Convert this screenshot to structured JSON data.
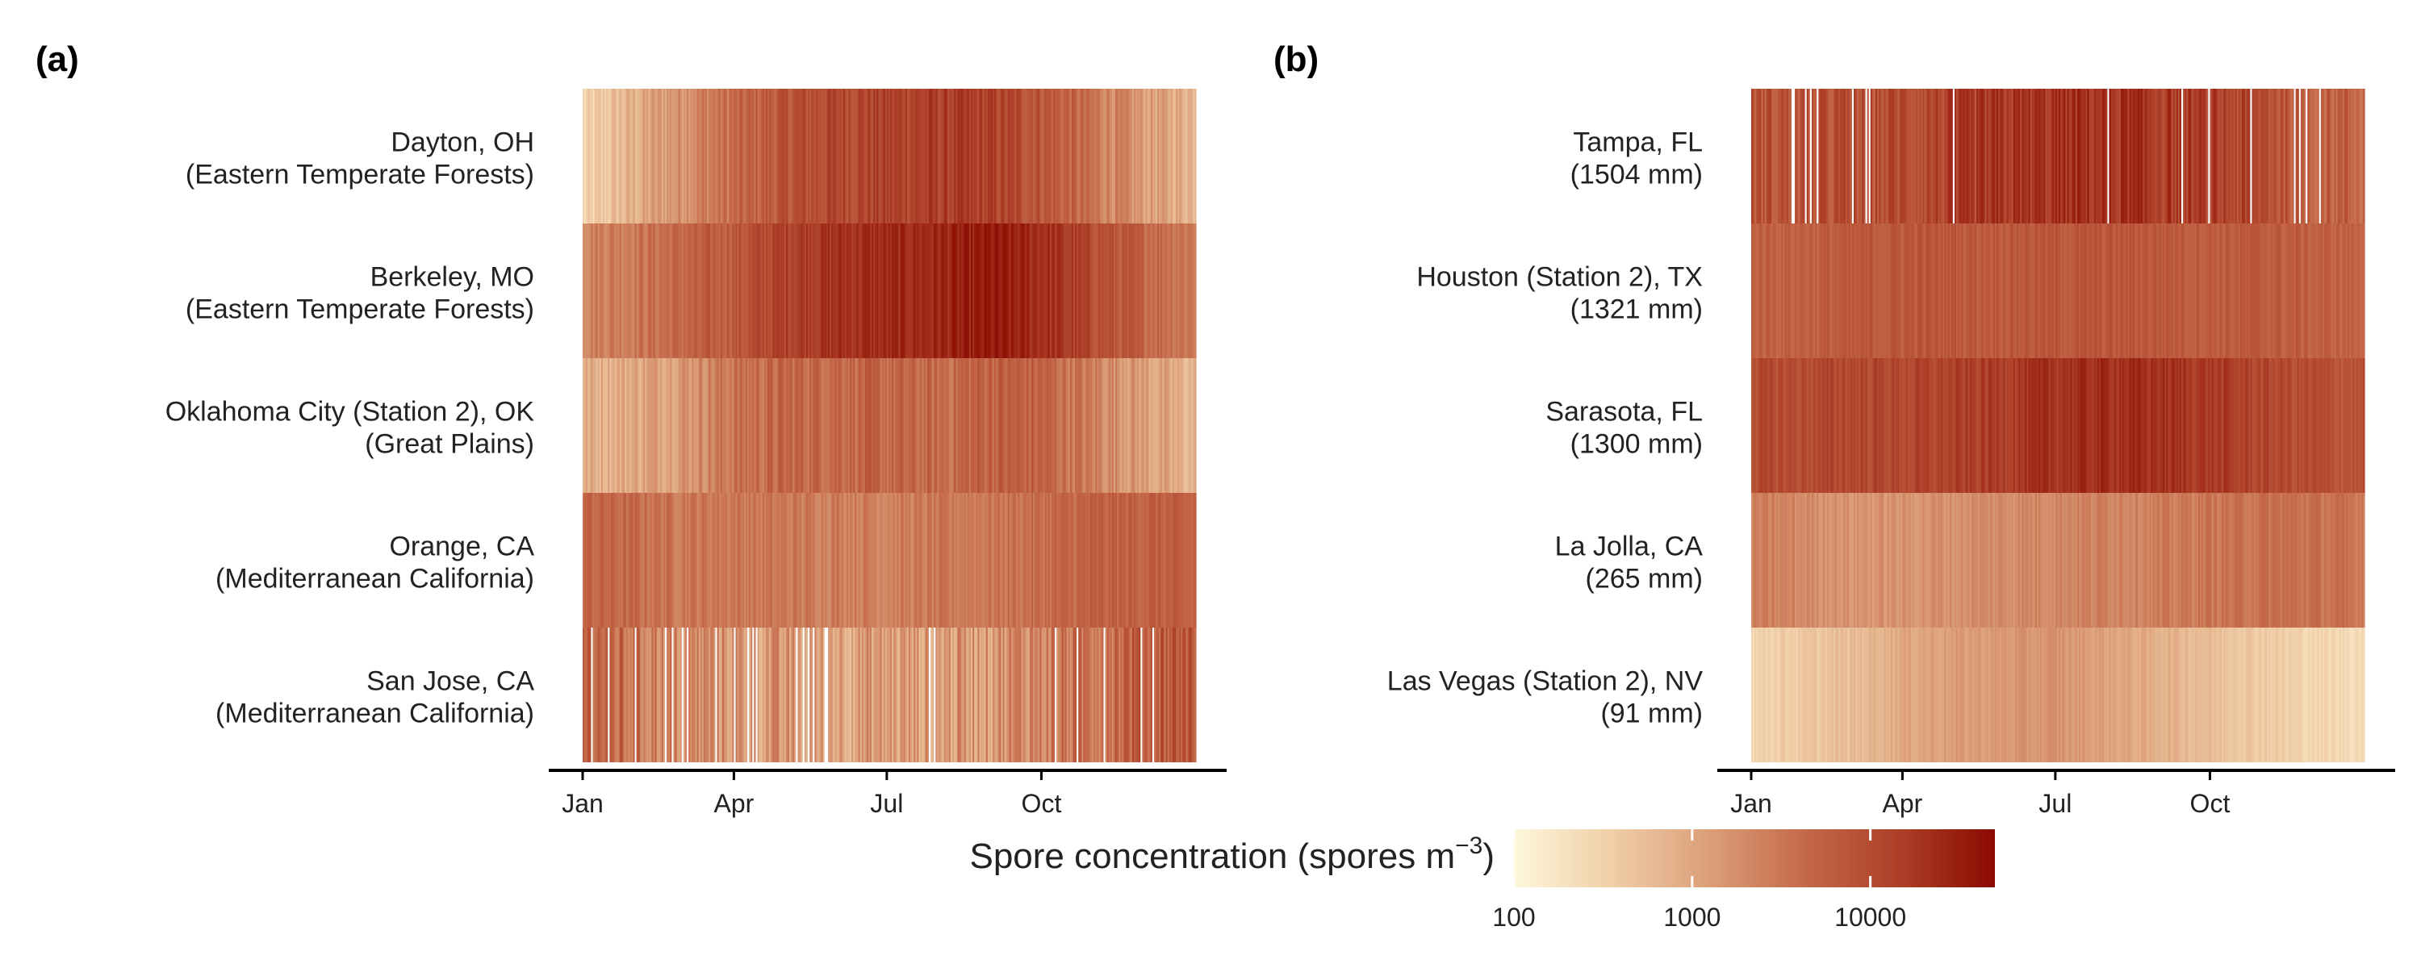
{
  "chart_data": [
    {
      "type": "heatmap",
      "panel_label": "(a)",
      "x_axis": {
        "type": "date",
        "range": [
          "Jan",
          "Dec"
        ],
        "ticks": [
          "Jan",
          "Apr",
          "Jul",
          "Oct"
        ]
      },
      "rows": [
        {
          "label_line1": "Dayton, OH",
          "label_line2": "(Eastern Temperate Forests)",
          "log10_profile": [
            2.4,
            2.9,
            3.3,
            3.6,
            3.9,
            4.05,
            4.1,
            4.15,
            4.1,
            3.9,
            3.5,
            3.1,
            2.9
          ],
          "noise": 0.25
        },
        {
          "label_line1": "Berkeley, MO",
          "label_line2": "(Eastern Temperate Forests)",
          "log10_profile": [
            3.4,
            3.5,
            3.65,
            3.85,
            4.15,
            4.3,
            4.35,
            4.4,
            4.5,
            4.35,
            4.0,
            3.7,
            3.5
          ],
          "noise": 0.2
        },
        {
          "label_line1": "Oklahoma City (Station 2), OK",
          "label_line2": "(Great Plains)",
          "log10_profile": [
            2.9,
            3.0,
            3.2,
            3.55,
            3.65,
            3.7,
            3.65,
            3.6,
            3.75,
            3.7,
            3.4,
            3.1,
            2.8
          ],
          "noise": 0.25
        },
        {
          "label_line1": "Orange, CA",
          "label_line2": "(Mediterranean California)",
          "log10_profile": [
            3.7,
            3.6,
            3.5,
            3.5,
            3.45,
            3.45,
            3.4,
            3.45,
            3.5,
            3.6,
            3.7,
            3.75,
            3.7
          ],
          "noise": 0.18
        },
        {
          "label_line1": "San Jose, CA",
          "label_line2": "(Mediterranean California)",
          "log10_profile": [
            3.8,
            3.5,
            3.3,
            3.2,
            3.1,
            3.1,
            3.1,
            3.1,
            3.2,
            3.4,
            3.6,
            3.8,
            3.9
          ],
          "noise": 0.4,
          "gaps": true
        }
      ]
    },
    {
      "type": "heatmap",
      "panel_label": "(b)",
      "x_axis": {
        "type": "date",
        "range": [
          "Jan",
          "Dec"
        ],
        "ticks": [
          "Jan",
          "Apr",
          "Jul",
          "Oct"
        ]
      },
      "rows": [
        {
          "label_line1": "Tampa, FL",
          "label_line2": "(1504 mm)",
          "log10_profile": [
            3.9,
            3.9,
            3.95,
            4.0,
            4.1,
            4.2,
            4.25,
            4.3,
            4.2,
            4.1,
            4.0,
            3.8,
            3.7
          ],
          "noise": 0.3,
          "gaps": true
        },
        {
          "label_line1": "Houston (Station 2), TX",
          "label_line2": "(1321 mm)",
          "log10_profile": [
            3.75,
            3.75,
            3.8,
            3.85,
            3.85,
            3.85,
            3.85,
            3.85,
            3.85,
            3.8,
            3.8,
            3.75,
            3.7
          ],
          "noise": 0.15
        },
        {
          "label_line1": "Sarasota, FL",
          "label_line2": "(1300 mm)",
          "log10_profile": [
            4.0,
            4.0,
            4.05,
            4.05,
            4.1,
            4.2,
            4.3,
            4.35,
            4.3,
            4.2,
            4.05,
            3.95,
            3.9
          ],
          "noise": 0.18
        },
        {
          "label_line1": "La Jolla, CA",
          "label_line2": "(265 mm)",
          "log10_profile": [
            3.4,
            3.3,
            3.2,
            3.2,
            3.25,
            3.3,
            3.35,
            3.4,
            3.4,
            3.5,
            3.55,
            3.55,
            3.5
          ],
          "noise": 0.15
        },
        {
          "label_line1": "Las Vegas (Station 2), NV",
          "label_line2": "(91 mm)",
          "log10_profile": [
            2.5,
            2.6,
            2.75,
            3.0,
            3.1,
            3.15,
            3.2,
            3.05,
            2.9,
            2.75,
            2.6,
            2.45,
            2.4
          ],
          "noise": 0.12
        }
      ]
    }
  ],
  "legend": {
    "title": "Spore concentration (spores m",
    "title_superscript": "−3",
    "title_close": ")",
    "scale": "log10",
    "range": [
      100,
      50000
    ],
    "ticks": [
      {
        "value": 100,
        "label": "100"
      },
      {
        "value": 1000,
        "label": "1000"
      },
      {
        "value": 10000,
        "label": "10000"
      }
    ],
    "colors": [
      "#fff8dc",
      "#f0cfa8",
      "#dca07a",
      "#c56a4a",
      "#ad3f28",
      "#8b0a00"
    ]
  }
}
